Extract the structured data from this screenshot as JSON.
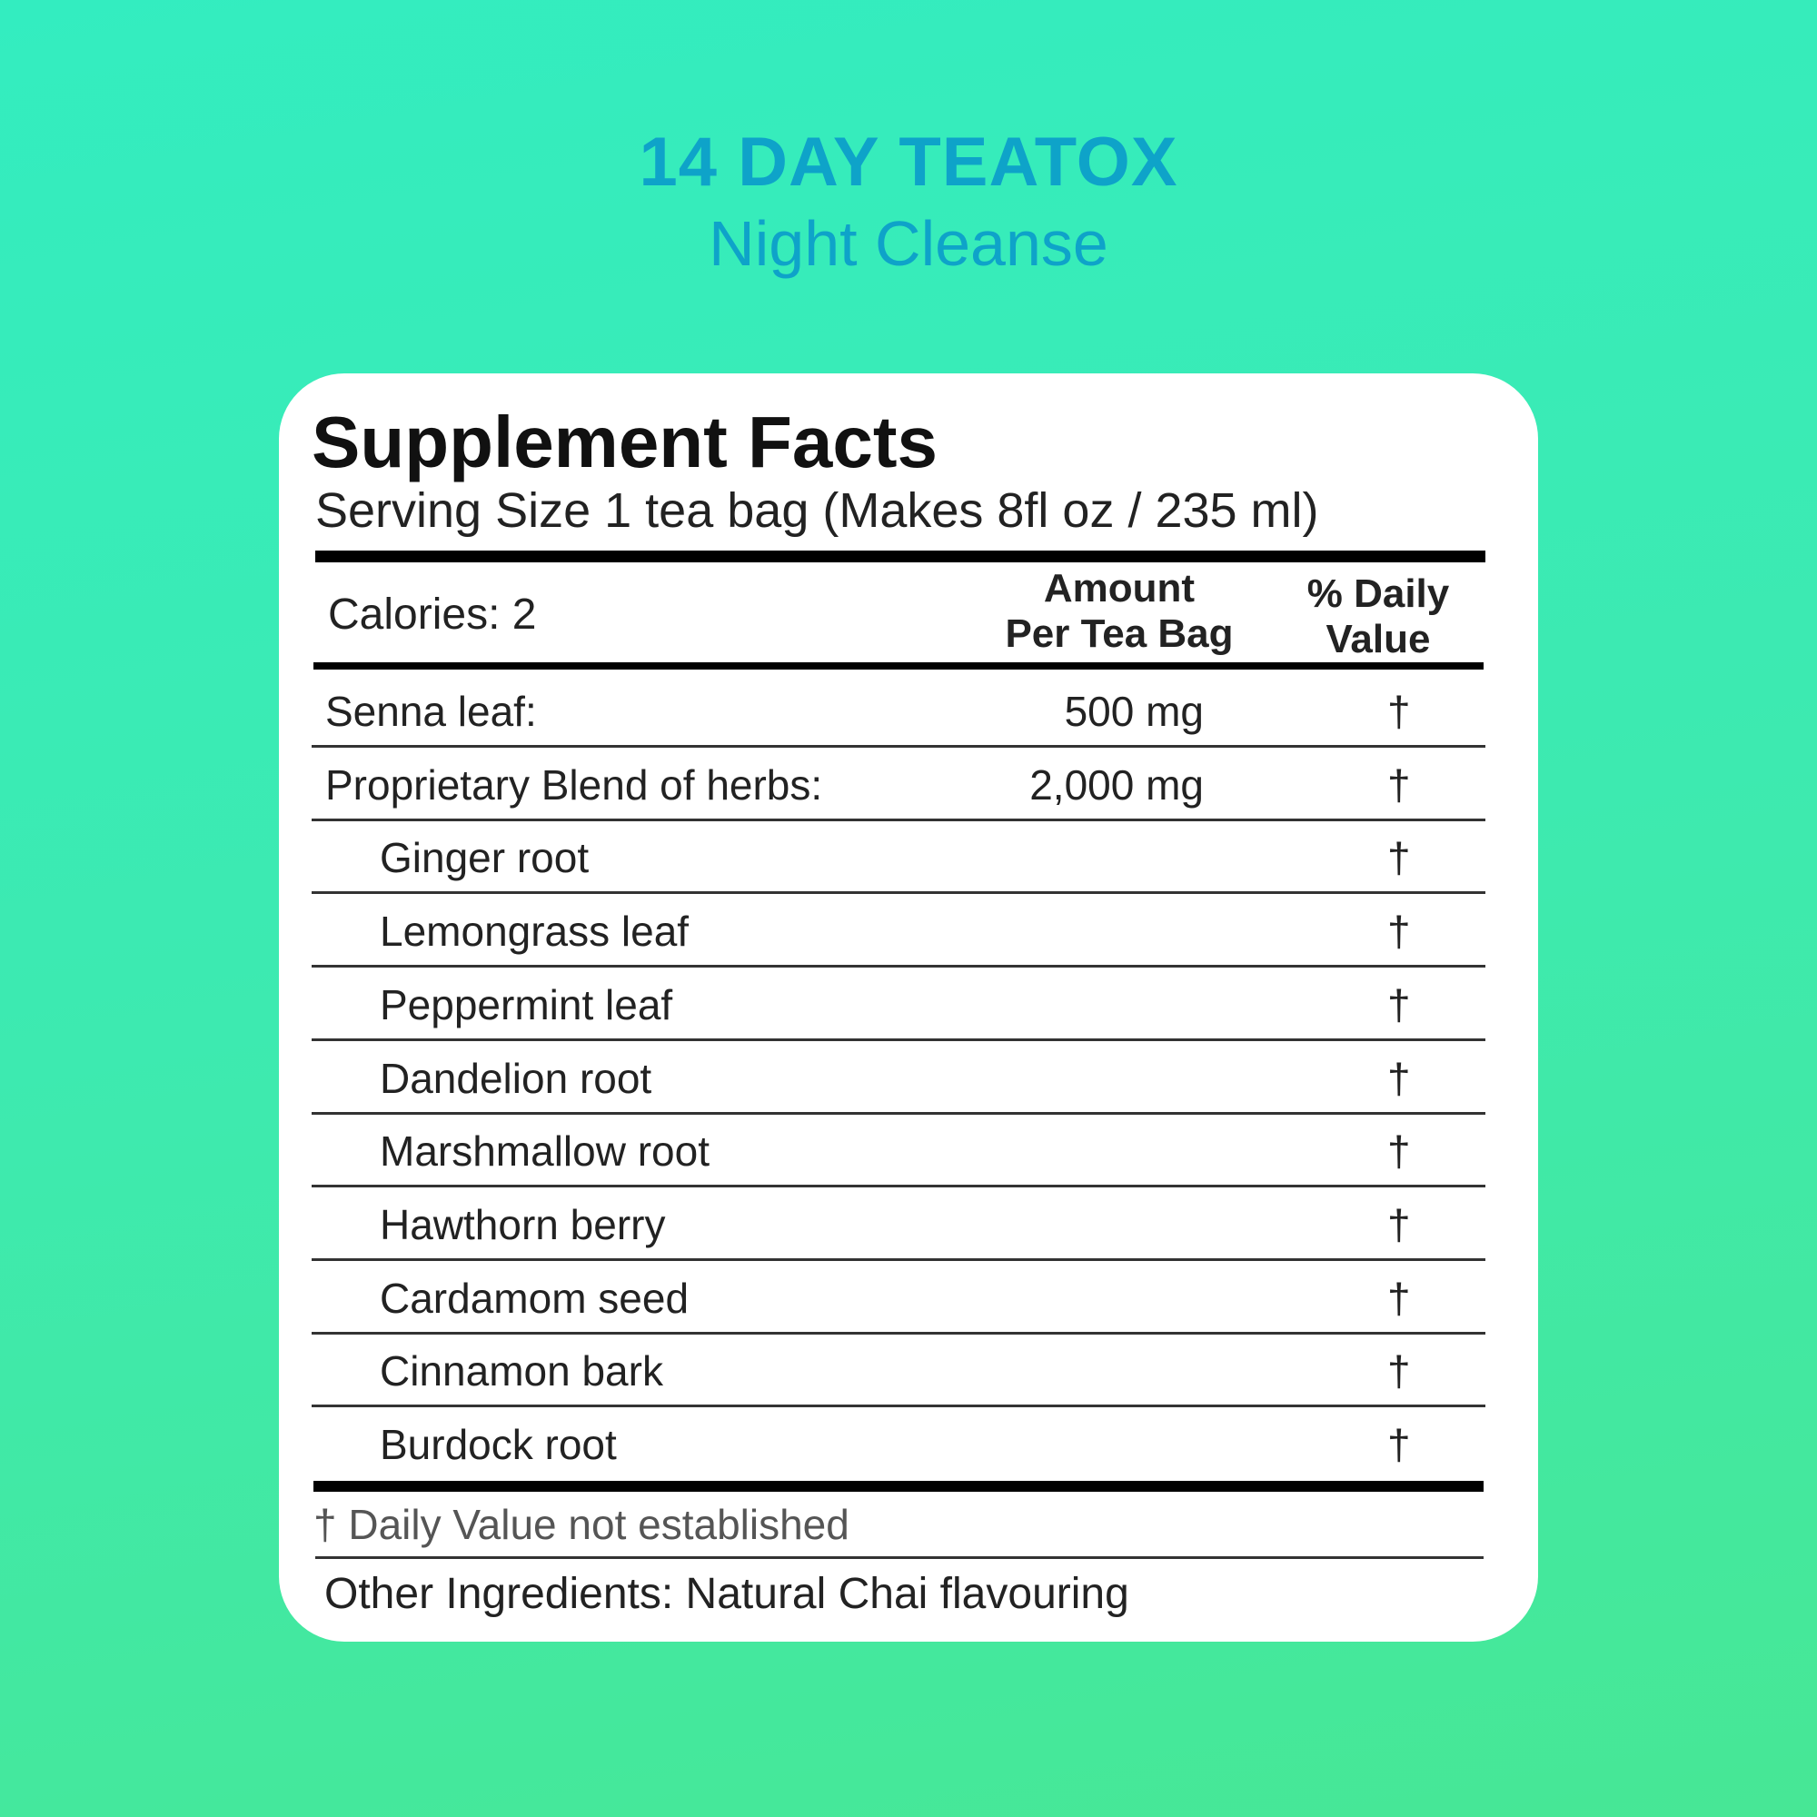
{
  "brand": {
    "title": "14 DAY TEATOX",
    "subtitle": "Night Cleanse",
    "color": "#0ea3c9"
  },
  "label": {
    "heading": "Supplement Facts",
    "serving_size": "Serving Size 1 tea bag (Makes 8fl oz / 235 ml)",
    "calories": "Calories: 2",
    "col_amount_1": "Amount",
    "col_amount_2": "Per Tea Bag",
    "col_dv_1": "% Daily",
    "col_dv_2": "Value",
    "rows": [
      {
        "name": "Senna leaf:",
        "amount": "500 mg",
        "dv": "†",
        "indent": false
      },
      {
        "name": "Proprietary Blend of herbs:",
        "amount": "2,000 mg",
        "dv": "†",
        "indent": false
      },
      {
        "name": "Ginger root",
        "amount": "",
        "dv": "†",
        "indent": true
      },
      {
        "name": "Lemongrass leaf",
        "amount": "",
        "dv": "†",
        "indent": true
      },
      {
        "name": "Peppermint leaf",
        "amount": "",
        "dv": "†",
        "indent": true
      },
      {
        "name": "Dandelion root",
        "amount": "",
        "dv": "†",
        "indent": true
      },
      {
        "name": "Marshmallow root",
        "amount": "",
        "dv": "†",
        "indent": true
      },
      {
        "name": "Hawthorn berry",
        "amount": "",
        "dv": "†",
        "indent": true
      },
      {
        "name": "Cardamom seed",
        "amount": "",
        "dv": "†",
        "indent": true
      },
      {
        "name": "Cinnamon bark",
        "amount": "",
        "dv": "†",
        "indent": true
      },
      {
        "name": "Burdock root",
        "amount": "",
        "dv": "†",
        "indent": true
      }
    ],
    "footnote": "† Daily Value not established",
    "other_ingredients": "Other Ingredients: Natural Chai flavouring"
  }
}
